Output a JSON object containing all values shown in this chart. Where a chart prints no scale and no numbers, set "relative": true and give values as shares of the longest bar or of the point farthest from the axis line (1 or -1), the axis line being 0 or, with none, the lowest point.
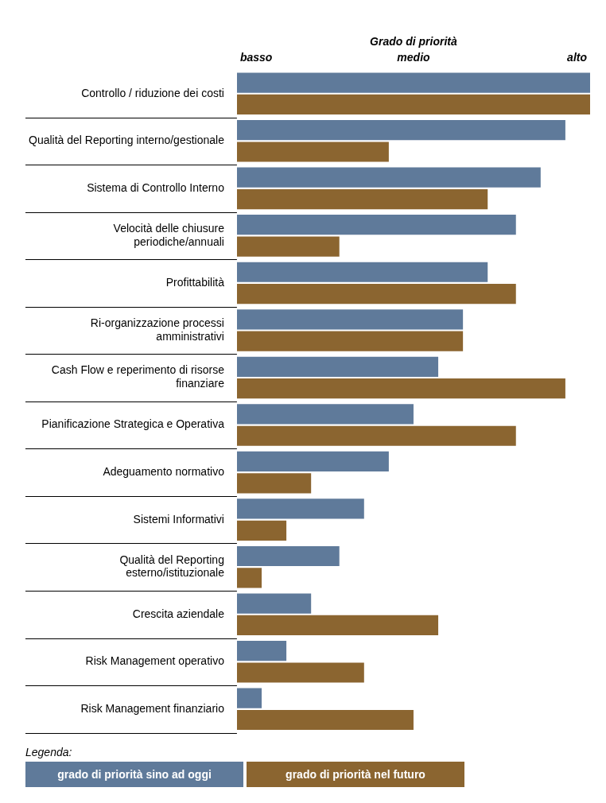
{
  "chart_data": {
    "type": "bar",
    "orientation": "horizontal",
    "relative": true,
    "xlabel": "Grado di priorità",
    "legend_title": "Legenda:",
    "legend": "bottom left",
    "annotations": [
      "basso",
      "medio",
      "alto"
    ],
    "categories": [
      "Controllo / riduzione dei costi",
      "Qualità del Reporting interno/gestionale",
      "Sistema di Controllo Interno",
      "Velocità delle chiusure\nperiodiche/annuali",
      "Profittabilità",
      "Ri-organizzazione processi\namministrativi",
      "Cash Flow e reperimento di risorse\nfinanziare",
      "Pianificazione Strategica e Operativa",
      "Adeguamento normativo",
      "Sistemi Informativi",
      "Qualità del Reporting\nesterno/istituzionale",
      "Crescita aziendale",
      "Risk Management operativo",
      "Risk Management finanziario"
    ],
    "series": [
      {
        "name": "grado di priorità sino ad oggi",
        "color": "#5f7a9a",
        "values": [
          1,
          0.93,
          0.86,
          0.79,
          0.71,
          0.64,
          0.57,
          0.5,
          0.43,
          0.36,
          0.29,
          0.21,
          0.14,
          0.07
        ]
      },
      {
        "name": "grado di priorità nel futuro",
        "color": "#8b6530",
        "values": [
          1,
          0.43,
          0.71,
          0.29,
          0.79,
          0.64,
          0.93,
          0.79,
          0.21,
          0.14,
          0.07,
          0.57,
          0.36,
          0.5
        ]
      }
    ]
  }
}
